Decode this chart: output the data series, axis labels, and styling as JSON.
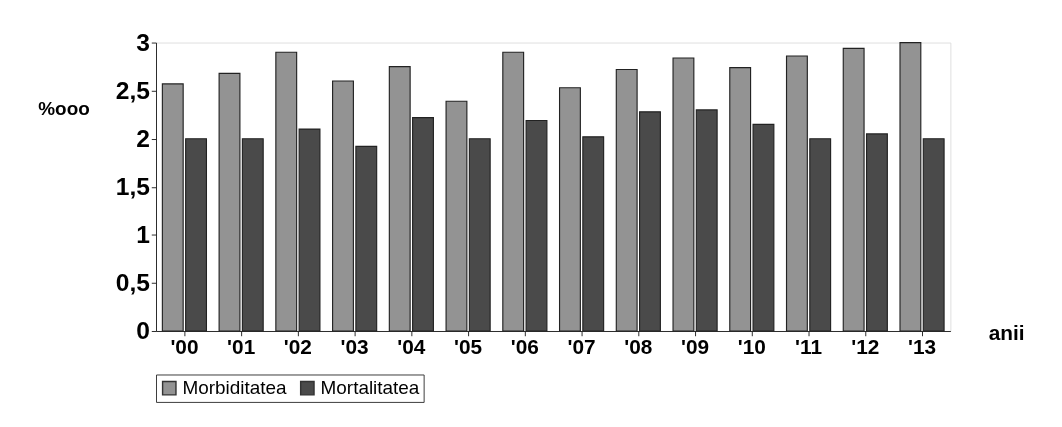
{
  "chart_data": {
    "type": "bar",
    "xlabel": "anii",
    "ylabel": "%ooo",
    "categories": [
      "'00",
      "'01",
      "'02",
      "'03",
      "'04",
      "'05",
      "'06",
      "'07",
      "'08",
      "'09",
      "'10",
      "'11",
      "'12",
      "'13"
    ],
    "series": [
      {
        "name": "Morbiditatea",
        "color": "#939393",
        "values": [
          2.57,
          2.68,
          2.9,
          2.6,
          2.75,
          2.39,
          2.9,
          2.53,
          2.72,
          2.84,
          2.74,
          2.86,
          2.94,
          3.0
        ]
      },
      {
        "name": "Mortalitatea",
        "color": "#4a4a4a",
        "values": [
          2.0,
          2.0,
          2.1,
          1.92,
          2.22,
          2.0,
          2.19,
          2.02,
          2.28,
          2.3,
          2.15,
          2.0,
          2.05,
          2.0
        ]
      }
    ],
    "ylim": [
      0,
      3
    ],
    "yticks": [
      0,
      {
        "value": 0.5,
        "label": "0,5"
      },
      1,
      {
        "value": 1.5,
        "label": "1,5"
      },
      2,
      {
        "value": 2.5,
        "label": "2,5"
      },
      3
    ],
    "legend": "bottom",
    "grid": false
  }
}
